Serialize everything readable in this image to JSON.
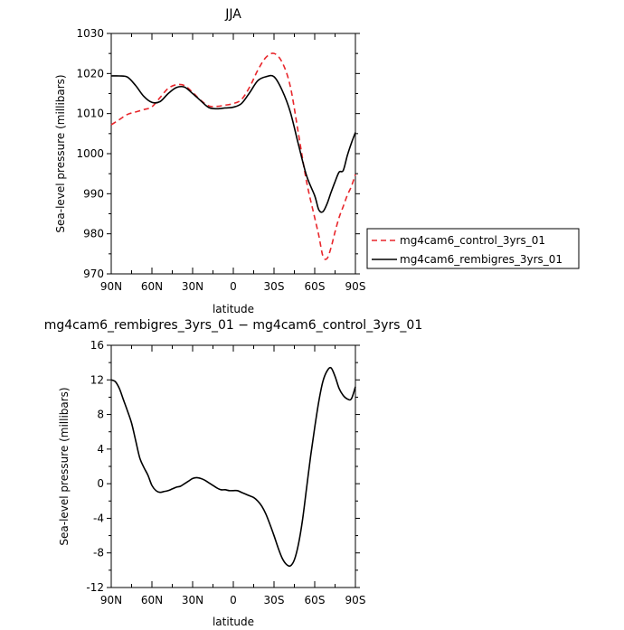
{
  "chart_data": [
    {
      "type": "line",
      "title": "JJA",
      "xlabel": "latitude",
      "ylabel": "Sea-level pressure (millibars)",
      "x_tick_labels": [
        "90N",
        "60N",
        "30N",
        "0",
        "30S",
        "60S",
        "90S"
      ],
      "x_tick_values": [
        90,
        60,
        30,
        0,
        -30,
        -60,
        -90
      ],
      "xlim": [
        90,
        -90
      ],
      "y_ticks": [
        970,
        980,
        990,
        1000,
        1010,
        1020,
        1030
      ],
      "ylim": [
        970,
        1030
      ],
      "grid": false,
      "legend_position": "right",
      "series": [
        {
          "name": "mg4cam6_control_3yrs_01",
          "color": "#e8262b",
          "dash": "dashed",
          "x": [
            90,
            84,
            78,
            72,
            66,
            60,
            54,
            48,
            42,
            36,
            30,
            24,
            18,
            12,
            6,
            0,
            -6,
            -12,
            -18,
            -24,
            -30,
            -36,
            -42,
            -48,
            -54,
            -60,
            -63,
            -66,
            -69,
            -72,
            -75,
            -78,
            -81,
            -84,
            -87,
            -90
          ],
          "y": [
            1007.2,
            1008.5,
            1009.8,
            1010.4,
            1011.0,
            1011.7,
            1014.0,
            1016.3,
            1017.2,
            1017.0,
            1015.3,
            1013.3,
            1011.9,
            1011.8,
            1012.1,
            1012.5,
            1013.5,
            1016.6,
            1020.8,
            1024.0,
            1025.0,
            1022.8,
            1016.8,
            1005.0,
            993.0,
            984.0,
            979.6,
            974.5,
            973.8,
            976.5,
            980.5,
            984.1,
            986.8,
            989.6,
            991.8,
            994.8
          ]
        },
        {
          "name": "mg4cam6_rembigres_3yrs_01",
          "color": "#000000",
          "dash": "solid",
          "x": [
            90,
            84,
            78,
            72,
            66,
            60,
            54,
            48,
            42,
            36,
            30,
            24,
            18,
            12,
            6,
            0,
            -6,
            -12,
            -18,
            -24,
            -30,
            -36,
            -42,
            -48,
            -54,
            -60,
            -63,
            -66,
            -69,
            -72,
            -75,
            -78,
            -81,
            -84,
            -87,
            -90
          ],
          "y": [
            1019.4,
            1019.4,
            1019.1,
            1017.0,
            1014.3,
            1012.8,
            1013.0,
            1015.0,
            1016.5,
            1016.6,
            1015.0,
            1013.2,
            1011.5,
            1011.2,
            1011.4,
            1011.6,
            1012.5,
            1015.2,
            1018.2,
            1019.2,
            1019.2,
            1015.8,
            1010.4,
            1002.3,
            994.5,
            989.5,
            986.0,
            985.5,
            987.4,
            990.3,
            993.0,
            995.4,
            995.8,
            999.5,
            1002.6,
            1005.3
          ]
        }
      ]
    },
    {
      "type": "line",
      "title": "mg4cam6_rembigres_3yrs_01 − mg4cam6_control_3yrs_01",
      "xlabel": "latitude",
      "ylabel": "Sea-level pressure (millibars)",
      "x_tick_labels": [
        "90N",
        "60N",
        "30N",
        "0",
        "30S",
        "60S",
        "90S"
      ],
      "x_tick_values": [
        90,
        60,
        30,
        0,
        -30,
        -60,
        -90
      ],
      "xlim": [
        90,
        -90
      ],
      "y_ticks": [
        -12,
        -8,
        -4,
        0,
        4,
        8,
        12,
        16
      ],
      "ylim": [
        -12,
        16
      ],
      "grid": false,
      "series": [
        {
          "color": "#000000",
          "dash": "solid",
          "x": [
            90,
            87,
            84,
            81,
            78,
            75,
            72,
            69,
            66,
            63,
            60,
            57,
            54,
            51,
            48,
            45,
            42,
            39,
            36,
            33,
            30,
            27,
            24,
            21,
            18,
            15,
            12,
            9,
            6,
            3,
            0,
            -3,
            -6,
            -9,
            -12,
            -15,
            -18,
            -21,
            -24,
            -27,
            -30,
            -33,
            -36,
            -39,
            -42,
            -45,
            -48,
            -51,
            -54,
            -57,
            -60,
            -63,
            -66,
            -69,
            -72,
            -75,
            -78,
            -81,
            -84,
            -87,
            -90
          ],
          "y": [
            12.0,
            11.8,
            11.0,
            9.7,
            8.4,
            7.0,
            5.0,
            3.0,
            1.9,
            1.0,
            -0.2,
            -0.8,
            -1.0,
            -0.9,
            -0.8,
            -0.6,
            -0.4,
            -0.3,
            0.0,
            0.3,
            0.6,
            0.7,
            0.6,
            0.4,
            0.1,
            -0.2,
            -0.5,
            -0.7,
            -0.7,
            -0.8,
            -0.8,
            -0.8,
            -1.0,
            -1.2,
            -1.4,
            -1.6,
            -2.0,
            -2.6,
            -3.5,
            -4.7,
            -6.0,
            -7.4,
            -8.6,
            -9.3,
            -9.5,
            -8.8,
            -7.0,
            -4.2,
            -0.5,
            3.2,
            6.5,
            9.5,
            11.8,
            13.0,
            13.4,
            12.4,
            11.0,
            10.2,
            9.8,
            9.8,
            11.2
          ]
        }
      ]
    }
  ]
}
